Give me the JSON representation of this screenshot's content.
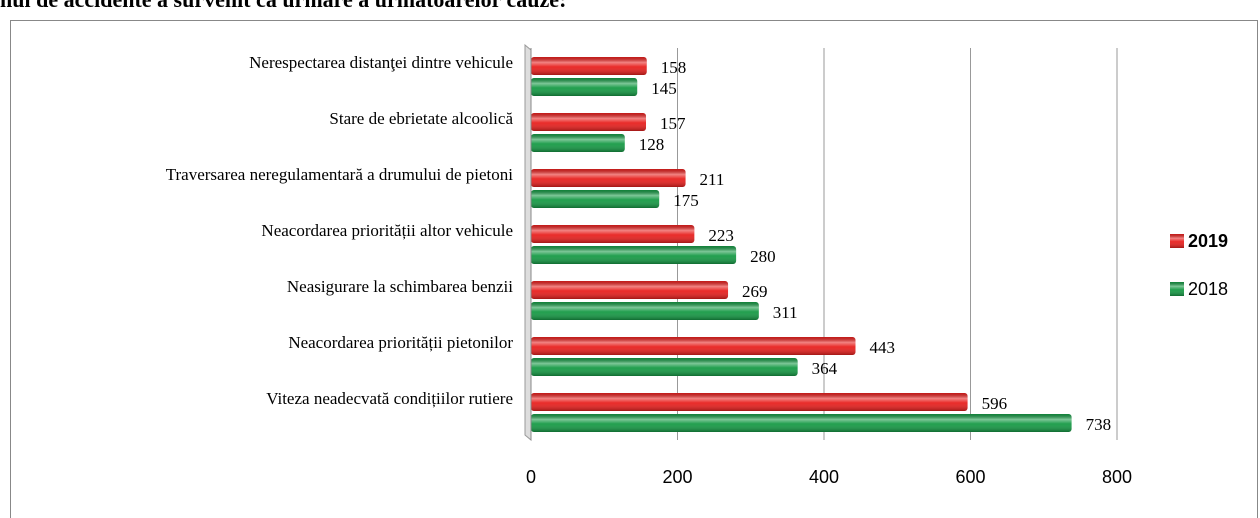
{
  "chart_data": {
    "type": "bar",
    "orientation": "horizontal",
    "title": "nul de accidente a survenit ca urmare a următoarelor cauze:",
    "categories": [
      "Nerespectarea distanţei dintre vehicule",
      "Stare de ebrietate alcoolică",
      "Traversarea neregulamentară a drumului de pietoni",
      "Neacordarea priorității altor vehicule",
      "Neasigurare la schimbarea benzii",
      "Neacordarea priorității pietonilor",
      "Viteza neadecvată condițiilor rutiere"
    ],
    "series": [
      {
        "name": "2019",
        "color": "#e8201e",
        "values": [
          158,
          157,
          211,
          223,
          269,
          443,
          596
        ]
      },
      {
        "name": "2018",
        "color": "#169a45",
        "values": [
          145,
          128,
          175,
          280,
          311,
          364,
          738
        ]
      }
    ],
    "xlim": [
      0,
      800
    ],
    "xticks": [
      0,
      200,
      400,
      600,
      800
    ],
    "grid": true,
    "legend": "right"
  }
}
